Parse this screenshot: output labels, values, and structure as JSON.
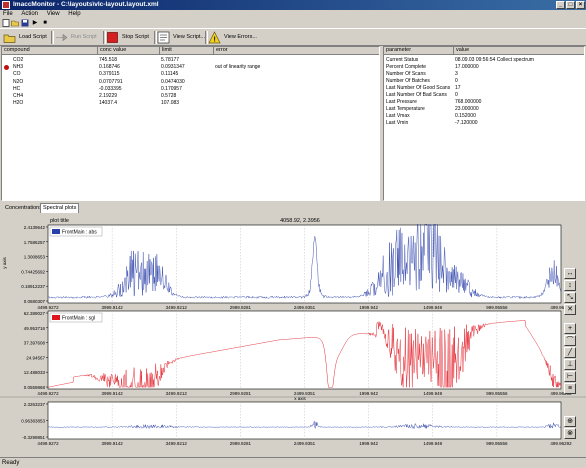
{
  "window": {
    "title": "ImaccMonitor - C:\\layouts\\vlc-layout.layout.xml"
  },
  "menu": [
    "File",
    "Action",
    "View",
    "Help"
  ],
  "toolbar": {
    "load_script": "Load Script",
    "run_script": "Run Script",
    "stop_script": "Stop Script",
    "view_script": "View Script...",
    "view_errors": "View Errors..."
  },
  "compounds_table": {
    "headers": [
      "compound",
      "conc value",
      "limit",
      "error"
    ],
    "rows": [
      {
        "compound": "CO2",
        "conc": "745.518",
        "limit": "5.78177",
        "error": "",
        "flag": false
      },
      {
        "compound": "NH3",
        "conc": "0.168746",
        "limit": "0.0931347",
        "error": "out of linearity range",
        "flag": true
      },
      {
        "compound": "CO",
        "conc": "0.379115",
        "limit": "0.11145",
        "error": "",
        "flag": false
      },
      {
        "compound": "N2O",
        "conc": "0.0707791",
        "limit": "0.0474030",
        "error": "",
        "flag": false
      },
      {
        "compound": "HC",
        "conc": "-0.033395",
        "limit": "0.170957",
        "error": "",
        "flag": false
      },
      {
        "compound": "CH4",
        "conc": "2.19229",
        "limit": "0.5728",
        "error": "",
        "flag": false
      },
      {
        "compound": "H2O",
        "conc": "14037.4",
        "limit": "107.083",
        "error": "",
        "flag": false
      }
    ]
  },
  "parameters_table": {
    "headers": [
      "parameter",
      "value"
    ],
    "rows": [
      {
        "name": "Current Status",
        "value": "08.09.03 09:56:54 Collect spectrum"
      },
      {
        "name": "Percent Complete",
        "value": "17.000000"
      },
      {
        "name": "Number Of Scans",
        "value": "3"
      },
      {
        "name": "Number Of Batches",
        "value": "0"
      },
      {
        "name": "Last Number Of Good Scans",
        "value": "17"
      },
      {
        "name": "Last Number Of Bad Scans",
        "value": "0"
      },
      {
        "name": "Last Pressure",
        "value": "768.000000"
      },
      {
        "name": "Last Temperature",
        "value": "23.000000"
      },
      {
        "name": "Last Vmax",
        "value": "0.152000"
      },
      {
        "name": "Last Vmin",
        "value": "-7.120000"
      }
    ]
  },
  "tabs": [
    "Concentrations",
    "Spectral plots"
  ],
  "plot": {
    "title": "plot title",
    "cursor_readout": "4058.92, 2.3956",
    "x_axis_label": "x axis"
  },
  "chart_data": [
    {
      "type": "line",
      "name": "FrontMain : abs",
      "color": "#2a3fa8",
      "ylim": [
        0.0680307,
        2.4139642
      ],
      "y_ticks": [
        "2.4139642",
        "1.7586257",
        "1.3008653",
        "0.74425692",
        "0.18912237",
        "0.0680307"
      ],
      "y_label": "y axis",
      "x_ticks": [
        "4499.9272",
        "3999.9142",
        "3499.9212",
        "2999.9281",
        "2499.9351",
        "1999.942",
        "1499.949",
        "999.95556",
        "499.96292"
      ]
    },
    {
      "type": "line",
      "name": "FrontMain : sgl",
      "color": "#e0141e",
      "ylim": [
        0.0559868,
        62.389027
      ],
      "y_ticks": [
        "62.389027",
        "49.953716",
        "37.397608",
        "24.94567",
        "12.488033",
        "0.0559868"
      ],
      "x_ticks": [
        "4499.9272",
        "3999.9142",
        "3499.9212",
        "2999.9281",
        "2499.9351",
        "1999.942",
        "1499.949",
        "999.95556",
        "499.96292"
      ]
    },
    {
      "type": "line",
      "name": "",
      "color": "#2a3fa8",
      "ylim": [
        -0.3299851,
        2.3263237
      ],
      "y_ticks": [
        "2.3263237",
        "0.96383853",
        "-0.3299851"
      ],
      "x_ticks": [
        "4499.9272",
        "3999.9142",
        "3499.9212",
        "2999.9281",
        "2499.9351",
        "1999.942",
        "1499.949",
        "999.95556",
        "499.96292"
      ]
    }
  ],
  "status": {
    "text": "Ready"
  }
}
